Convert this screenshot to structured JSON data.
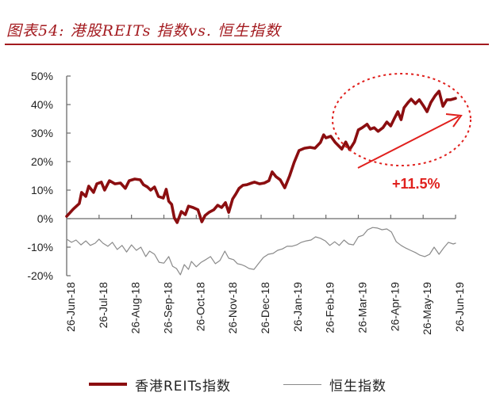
{
  "header": {
    "title": "图表54: 港股REITs 指数vs. 恒生指数",
    "rule_color": "#a31a1f"
  },
  "colors": {
    "reits": "#8b0e10",
    "hsi": "#8a8a8a",
    "annotation": "#e0201d",
    "axis": "#6b6b6b"
  },
  "chart_data": {
    "type": "line",
    "title": "港股REITs 指数vs. 恒生指数",
    "xlabel": "",
    "ylabel": "",
    "ylim": [
      -20,
      50
    ],
    "grid": false,
    "legend_position": "bottom",
    "y_ticks": [
      "50%",
      "40%",
      "30%",
      "20%",
      "10%",
      "0%",
      "-10%",
      "-20%"
    ],
    "y_tick_values": [
      50,
      40,
      30,
      20,
      10,
      0,
      -10,
      -20
    ],
    "categories": [
      "26-Jun-18",
      "26-Jul-18",
      "26-Aug-18",
      "26-Sep-18",
      "26-Oct-18",
      "26-Nov-18",
      "26-Dec-18",
      "26-Jan-19",
      "26-Feb-19",
      "26-Mar-19",
      "26-Apr-19",
      "26-May-19",
      "26-Jun-19"
    ],
    "series": [
      {
        "name": "香港REITs指数",
        "color": "#8b0e10",
        "x_index": [
          0,
          0.2,
          0.39,
          0.46,
          0.59,
          0.68,
          0.83,
          0.93,
          1.07,
          1.17,
          1.32,
          1.49,
          1.66,
          1.81,
          1.93,
          2.1,
          2.27,
          2.37,
          2.49,
          2.59,
          2.71,
          2.83,
          2.98,
          3.07,
          3.15,
          3.24,
          3.32,
          3.41,
          3.54,
          3.66,
          3.76,
          3.9,
          4.05,
          4.17,
          4.27,
          4.39,
          4.54,
          4.66,
          4.78,
          4.9,
          5.0,
          5.12,
          5.22,
          5.32,
          5.44,
          5.56,
          5.71,
          5.8,
          5.95,
          6.1,
          6.24,
          6.34,
          6.46,
          6.59,
          6.73,
          6.88,
          7.02,
          7.17,
          7.34,
          7.51,
          7.66,
          7.83,
          7.93,
          8.0,
          8.15,
          8.29,
          8.49,
          8.61,
          8.73,
          8.88,
          9.0,
          9.12,
          9.27,
          9.37,
          9.49,
          9.61,
          9.76,
          9.88,
          10.0,
          10.12,
          10.22,
          10.32,
          10.41,
          10.54,
          10.63,
          10.76,
          10.88,
          11.0,
          11.12,
          11.24,
          11.37,
          11.49,
          11.61,
          11.73,
          11.85,
          12.0
        ],
        "values": [
          0.8,
          3.3,
          5.3,
          9.2,
          7.8,
          11.4,
          9.2,
          12.2,
          12.8,
          10.0,
          13.3,
          12.2,
          12.5,
          10.6,
          13.3,
          13.9,
          13.6,
          11.9,
          11.1,
          10.0,
          11.1,
          7.8,
          7.2,
          10.3,
          6.1,
          5.0,
          0.3,
          -1.4,
          2.5,
          1.4,
          4.4,
          3.9,
          3.1,
          -1.1,
          1.1,
          2.2,
          3.1,
          4.7,
          3.9,
          5.6,
          2.2,
          6.9,
          8.6,
          10.6,
          11.7,
          11.9,
          12.5,
          12.8,
          12.2,
          12.5,
          13.3,
          16.4,
          14.7,
          13.6,
          10.8,
          15.0,
          19.7,
          23.9,
          24.7,
          25.0,
          24.7,
          26.7,
          29.4,
          28.3,
          28.9,
          26.7,
          24.4,
          26.9,
          24.2,
          26.9,
          31.1,
          31.9,
          33.1,
          31.4,
          31.9,
          30.6,
          31.9,
          33.9,
          32.5,
          35.3,
          37.5,
          34.7,
          38.9,
          40.8,
          41.9,
          40.3,
          41.7,
          39.7,
          37.5,
          40.8,
          43.1,
          44.7,
          39.4,
          41.7,
          41.7,
          42.2
        ]
      },
      {
        "name": "恒生指数",
        "color": "#8a8a8a",
        "x_index": [
          0,
          0.15,
          0.29,
          0.44,
          0.59,
          0.73,
          0.88,
          1.0,
          1.12,
          1.27,
          1.41,
          1.56,
          1.71,
          1.85,
          2.0,
          2.15,
          2.29,
          2.44,
          2.56,
          2.71,
          2.85,
          3.0,
          3.15,
          3.27,
          3.39,
          3.51,
          3.63,
          3.76,
          3.85,
          4.0,
          4.15,
          4.29,
          4.44,
          4.59,
          4.73,
          4.88,
          5.0,
          5.15,
          5.27,
          5.39,
          5.51,
          5.63,
          5.78,
          5.93,
          6.07,
          6.22,
          6.37,
          6.51,
          6.66,
          6.8,
          6.95,
          7.1,
          7.24,
          7.39,
          7.54,
          7.68,
          7.83,
          7.98,
          8.12,
          8.27,
          8.41,
          8.56,
          8.7,
          8.85,
          9.0,
          9.15,
          9.29,
          9.44,
          9.59,
          9.73,
          9.88,
          10.02,
          10.17,
          10.32,
          10.46,
          10.61,
          10.76,
          10.9,
          11.05,
          11.2,
          11.34,
          11.49,
          11.63,
          11.78,
          11.93,
          12.0
        ],
        "values": [
          -7.2,
          -8.3,
          -7.5,
          -9.2,
          -7.8,
          -9.4,
          -8.6,
          -7.2,
          -8.6,
          -9.7,
          -8.3,
          -10.8,
          -9.4,
          -11.7,
          -9.2,
          -11.1,
          -10.0,
          -13.3,
          -11.4,
          -12.5,
          -15.3,
          -15.6,
          -13.3,
          -16.7,
          -17.5,
          -19.7,
          -16.1,
          -17.8,
          -15.0,
          -16.9,
          -15.3,
          -14.4,
          -13.3,
          -15.8,
          -14.7,
          -11.4,
          -13.9,
          -14.4,
          -15.8,
          -16.1,
          -16.7,
          -17.5,
          -17.8,
          -15.6,
          -13.6,
          -12.5,
          -12.2,
          -11.1,
          -10.6,
          -9.7,
          -9.7,
          -9.2,
          -8.3,
          -7.8,
          -7.5,
          -6.4,
          -6.9,
          -7.8,
          -9.4,
          -8.1,
          -9.4,
          -7.5,
          -8.9,
          -9.2,
          -6.4,
          -5.8,
          -3.9,
          -3.1,
          -3.3,
          -3.9,
          -3.6,
          -4.7,
          -8.1,
          -9.4,
          -10.3,
          -11.1,
          -11.9,
          -12.8,
          -13.3,
          -12.5,
          -10.0,
          -12.5,
          -10.3,
          -8.3,
          -8.9,
          -8.6
        ]
      }
    ],
    "annotations": [
      {
        "type": "ellipse",
        "style": "dashed",
        "color": "#e0201d",
        "region": "26-Feb-19 to 26-Jun-19"
      },
      {
        "type": "arrow",
        "color": "#e0201d",
        "direction": "up-right"
      },
      {
        "type": "text",
        "text": "+11.5%",
        "color": "#e0201d"
      }
    ]
  },
  "legend": {
    "items": [
      {
        "label": "香港REITs指数",
        "color": "#8b0e10",
        "style": "thick"
      },
      {
        "label": "恒生指数",
        "color": "#8a8a8a",
        "style": "thin"
      }
    ]
  }
}
